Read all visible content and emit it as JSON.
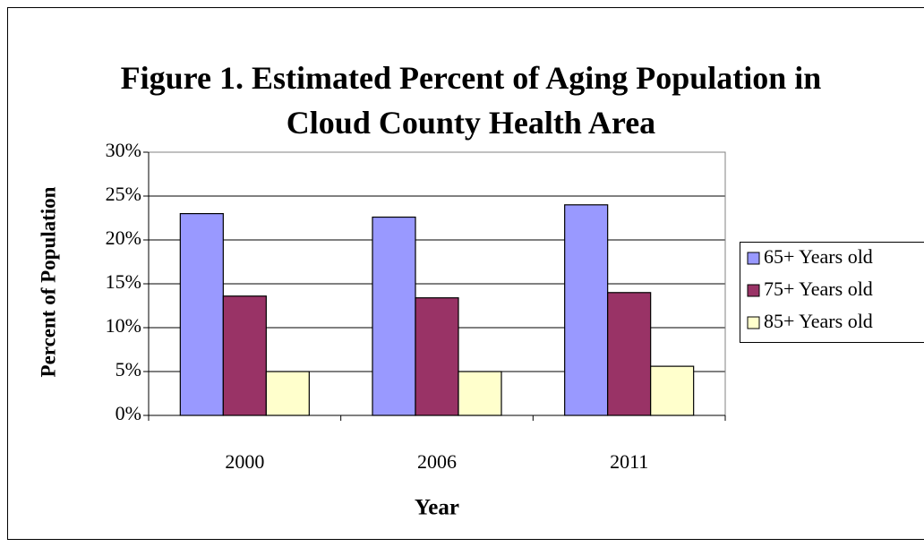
{
  "chart_data": {
    "type": "bar",
    "title": "Figure 1. Estimated Percent of Aging Population in Cloud County Health Area",
    "x_label": "Year",
    "y_label": "Percent of Population",
    "categories": [
      "2000",
      "2006",
      "2011"
    ],
    "series": [
      {
        "name": "65+ Years old",
        "color": "#9999ff",
        "values": [
          23,
          22.6,
          24
        ]
      },
      {
        "name": "75+ Years old",
        "color": "#993366",
        "values": [
          13.6,
          13.4,
          14
        ]
      },
      {
        "name": "85+ Years old",
        "color": "#ffffcc",
        "values": [
          5,
          5,
          5.6
        ]
      }
    ],
    "ylim": [
      0,
      30
    ],
    "yticks": [
      {
        "value": 0,
        "label": "0%"
      },
      {
        "value": 5,
        "label": "5%"
      },
      {
        "value": 10,
        "label": "10%"
      },
      {
        "value": 15,
        "label": "15%"
      },
      {
        "value": 20,
        "label": "20%"
      },
      {
        "value": 25,
        "label": "25%"
      },
      {
        "value": 30,
        "label": "30%"
      }
    ],
    "grid": true,
    "legend": "right"
  }
}
